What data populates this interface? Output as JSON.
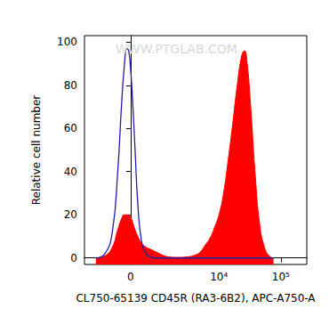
{
  "chart_data": {
    "type": "histogram",
    "x_label": "CL750-65139 CD45R (RA3-6B2), APC-A750-A",
    "y_label": "Relative cell number",
    "annotations": [
      "WWW.PTGLAB.COM"
    ],
    "log": "x",
    "grid": false,
    "xlim": [
      -2000,
      262144
    ],
    "xticks": [
      0,
      {
        "value": 10000,
        "label": "10⁴"
      },
      {
        "value": 100000,
        "label": "10⁵"
      }
    ],
    "ylim": [
      -3,
      103
    ],
    "yticks": [
      0,
      20,
      40,
      60,
      80,
      100
    ],
    "x": [
      -1250,
      -820,
      -545,
      -368,
      -257,
      -178,
      -101,
      -51,
      0,
      51,
      127,
      205,
      312,
      454,
      610,
      784,
      977,
      1200,
      1455,
      2100,
      3010,
      4245,
      5050,
      5990,
      7110,
      8430,
      10000,
      11860,
      14030,
      16640,
      19750,
      23420,
      25880,
      28590,
      32600,
      38660,
      45830,
      54260,
      64320,
      76200
    ],
    "series": [
      {
        "type": "line",
        "color": "#1f1fa8",
        "marker": "none",
        "values": [
          0,
          2,
          12,
          40,
          70,
          88,
          97,
          96,
          88,
          75,
          50,
          25,
          8,
          2,
          0.5,
          0,
          0,
          0,
          0,
          0,
          0,
          0,
          0,
          0,
          0,
          0,
          0,
          0,
          0,
          0,
          0,
          0,
          0,
          0,
          0,
          0,
          0,
          0,
          0,
          0
        ]
      },
      {
        "type": "area",
        "color": "#ff0000",
        "marker": "none",
        "values": [
          0,
          1,
          5,
          13,
          18,
          20,
          20,
          20,
          19,
          17,
          13,
          10,
          7,
          5,
          4,
          3,
          2,
          1,
          0.5,
          0.3,
          0.5,
          1.5,
          3,
          6,
          9,
          14,
          20,
          30,
          45,
          62,
          80,
          94,
          96,
          90,
          70,
          38,
          15,
          5,
          1,
          0
        ]
      }
    ]
  }
}
